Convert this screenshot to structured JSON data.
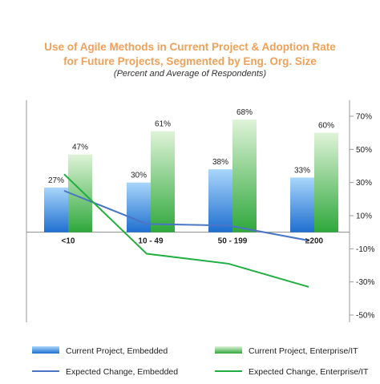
{
  "chart_data": {
    "type": "bar",
    "title_lines": [
      "Use of Agile Methods in Current Project & Adoption Rate",
      "for Future Projects, Segmented by Eng. Org. Size"
    ],
    "subtitle": "(Percent and Average of Respondents)",
    "categories": [
      "<10",
      "10 - 49",
      "50 - 199",
      "≥200"
    ],
    "series": [
      {
        "name": "Current Project, Embedded",
        "kind": "bar",
        "values": [
          27,
          30,
          38,
          33
        ],
        "labels": [
          "27%",
          "30%",
          "38%",
          "33%"
        ],
        "color": "#3d8fe0"
      },
      {
        "name": "Current Project, Enterprise/IT",
        "kind": "bar",
        "values": [
          47,
          61,
          68,
          60
        ],
        "labels": [
          "47%",
          "61%",
          "68%",
          "60%"
        ],
        "color": "#5cc45c"
      },
      {
        "name": "Expected Change, Embedded",
        "kind": "line",
        "axis": "right",
        "values": [
          25,
          5,
          4,
          -5
        ],
        "color": "#4a74c4"
      },
      {
        "name": "Expected Change, Enterprise/IT",
        "kind": "line",
        "axis": "right",
        "values": [
          35,
          -13,
          -19,
          -33
        ],
        "color": "#1fae3f"
      }
    ],
    "bar_axis_range": [
      -50,
      70
    ],
    "right_axis": {
      "ticks": [
        70,
        50,
        30,
        10,
        -10,
        -30,
        -50
      ],
      "tick_labels": [
        "70%",
        "50%",
        "30%",
        "10%",
        "-10%",
        "-30%",
        "-50%"
      ],
      "range": [
        -50,
        70
      ]
    },
    "legend_position": "bottom",
    "grid": false
  }
}
